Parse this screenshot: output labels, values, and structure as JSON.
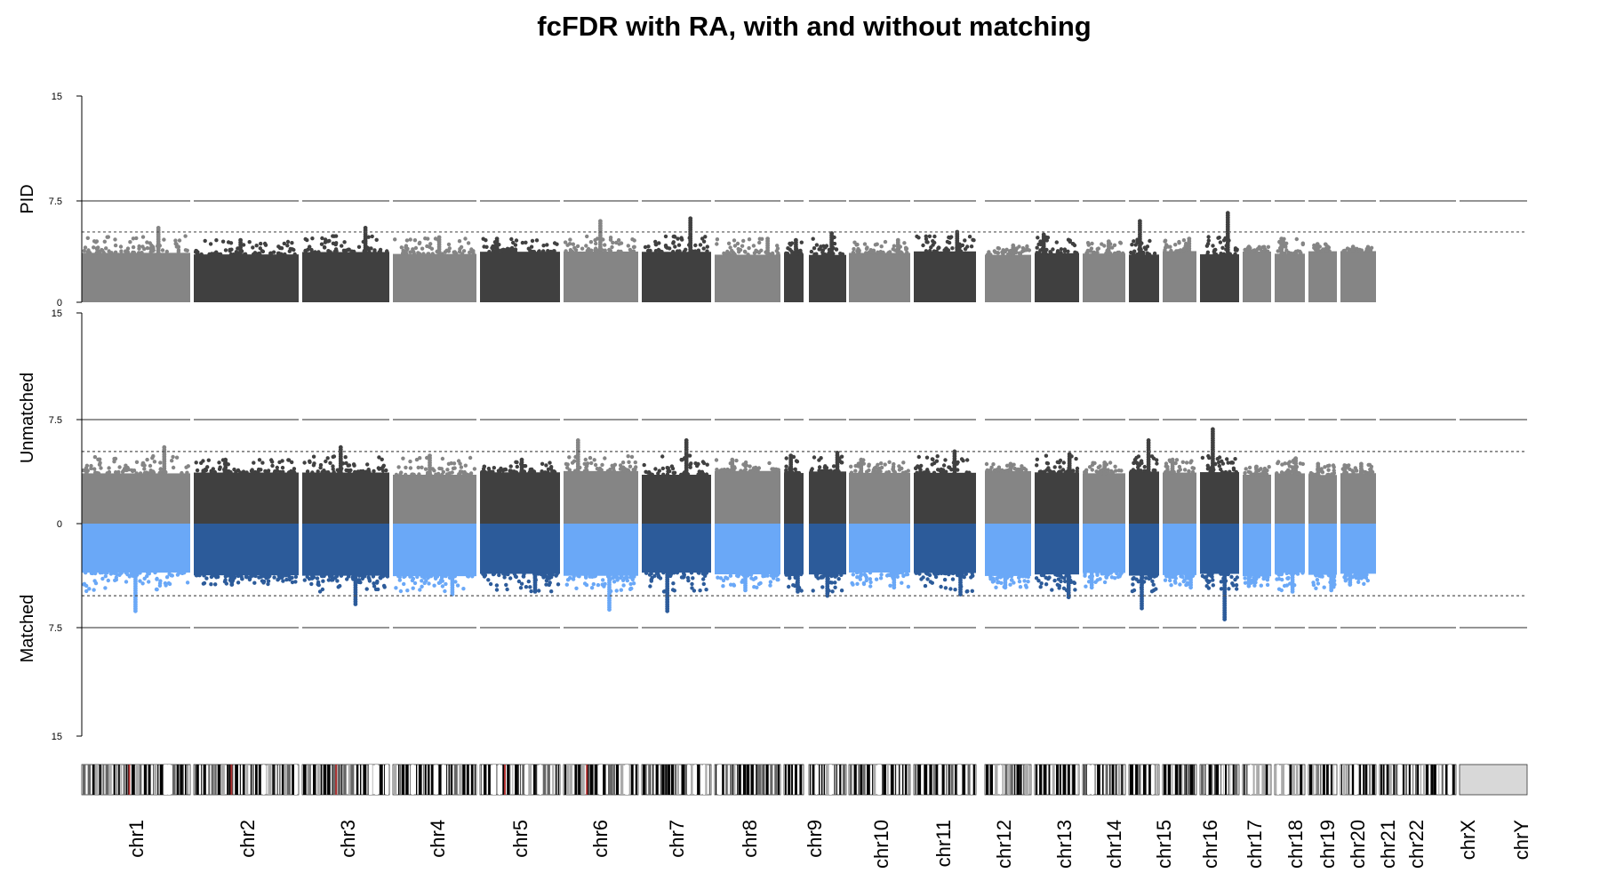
{
  "chart_data": {
    "type": "scatter",
    "title": "fcFDR with RA, with and without matching",
    "panels": [
      {
        "name": "PID",
        "ylim": [
          0,
          15
        ],
        "ticks": [
          "0",
          "7.5",
          "15"
        ],
        "direction": "up"
      },
      {
        "name": "Unmatched",
        "ylim": [
          0,
          15
        ],
        "ticks": [
          "0",
          "7.5",
          "15"
        ],
        "direction": "up"
      },
      {
        "name": "Matched",
        "ylim": [
          0,
          15
        ],
        "ticks": [
          "0",
          "7.5",
          "15"
        ],
        "direction": "down"
      }
    ],
    "reference_lines": {
      "solid": 7.5,
      "dotted": 5.2
    },
    "colors": {
      "gray_light": "#858585",
      "gray_dark": "#404040",
      "blue_light": "#6aa8f7",
      "blue_dark": "#2c5b9a",
      "line": "#555555"
    },
    "chromosomes": [
      "chr1",
      "chr2",
      "chr3",
      "chr4",
      "chr5",
      "chr6",
      "chr7",
      "chr8",
      "chr9",
      "chr10",
      "chr11",
      "chr12",
      "chr13",
      "chr14",
      "chr15",
      "chr16",
      "chr17",
      "chr18",
      "chr19",
      "chr20",
      "chr21",
      "chr22",
      "chrX",
      "chrY"
    ],
    "peaks": {
      "PID": {
        "chr1": 5.5,
        "chr2": 4.6,
        "chr3": 5.5,
        "chr4": 4.8,
        "chr5": 4.7,
        "chr6": 6.0,
        "chr7": 6.2,
        "chr8": 4.7,
        "chr9": 4.6,
        "chr10": 5.1,
        "chr11": 4.6,
        "chr12": 5.2,
        "chr13": 4.2,
        "chr14": 5.0,
        "chr15": 4.5,
        "chr16": 6.0,
        "chr17": 4.7,
        "chr18": 6.6,
        "chr19": 4.1,
        "chr20": 4.7,
        "chr21": 4.3,
        "chr22": 4.1
      },
      "Unmatched": {
        "chr1": 5.5,
        "chr2": 4.6,
        "chr3": 5.5,
        "chr4": 4.9,
        "chr5": 4.6,
        "chr6": 6.0,
        "chr7": 6.0,
        "chr8": 4.6,
        "chr9": 4.9,
        "chr10": 5.1,
        "chr11": 4.6,
        "chr12": 5.2,
        "chr13": 4.3,
        "chr14": 5.0,
        "chr15": 4.4,
        "chr16": 6.0,
        "chr17": 4.6,
        "chr18": 6.8,
        "chr19": 4.1,
        "chr20": 4.7,
        "chr21": 4.3,
        "chr22": 4.3
      },
      "Matched": {
        "chr1": 6.3,
        "chr2": 4.4,
        "chr3": 5.8,
        "chr4": 5.1,
        "chr5": 4.9,
        "chr6": 6.2,
        "chr7": 6.3,
        "chr8": 4.8,
        "chr9": 4.9,
        "chr10": 5.2,
        "chr11": 4.6,
        "chr12": 5.1,
        "chr13": 4.6,
        "chr14": 5.3,
        "chr15": 4.6,
        "chr16": 6.1,
        "chr17": 4.6,
        "chr18": 6.9,
        "chr19": 4.5,
        "chr20": 4.9,
        "chr21": 4.8,
        "chr22": 4.4
      }
    },
    "grid": false,
    "legend": "none",
    "ideogram": true
  }
}
